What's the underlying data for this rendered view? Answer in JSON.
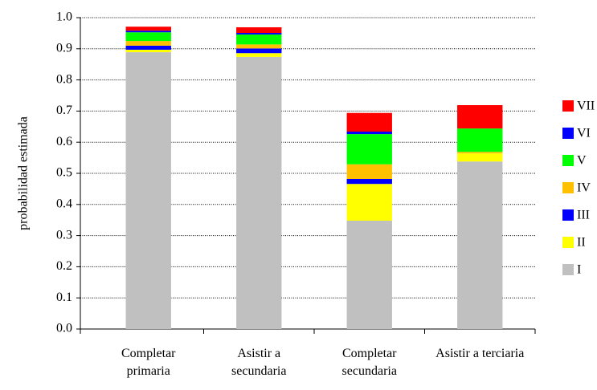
{
  "chart_data": {
    "type": "stacked_bar",
    "y_label": "probabilidad estimada",
    "categories": [
      "Completar primaria",
      "Asistir a secundaria",
      "Completar secundaria",
      "Asistir a terciaria"
    ],
    "series": [
      {
        "name": "I",
        "color": "#c0c0c0",
        "values": [
          0.889,
          0.874,
          0.348,
          0.538
        ]
      },
      {
        "name": "II",
        "color": "#ffff00",
        "values": [
          0.008,
          0.012,
          0.118,
          0.026
        ]
      },
      {
        "name": "III",
        "color": "#0000ff",
        "values": [
          0.013,
          0.015,
          0.016,
          0
        ]
      },
      {
        "name": "IV",
        "color": "#ffc000",
        "values": [
          0.015,
          0.013,
          0.047,
          0.005
        ]
      },
      {
        "name": "V",
        "color": "#00ff00",
        "values": [
          0.028,
          0.032,
          0.097,
          0.075
        ]
      },
      {
        "name": "VI",
        "color": "#0000ff",
        "values": [
          0.005,
          0.005,
          0.008,
          0
        ]
      },
      {
        "name": "VII",
        "color": "#ff0000",
        "values": [
          0.013,
          0.018,
          0.06,
          0.075
        ]
      }
    ],
    "ylim": [
      0,
      1
    ],
    "yticks": [
      {
        "value": 0,
        "label": "0.0"
      },
      0.1,
      0.2,
      0.3,
      0.4,
      0.5,
      0.6,
      0.7,
      0.8,
      0.9,
      {
        "value": 1,
        "label": "1.0"
      }
    ],
    "grid": true,
    "legend": "right"
  }
}
